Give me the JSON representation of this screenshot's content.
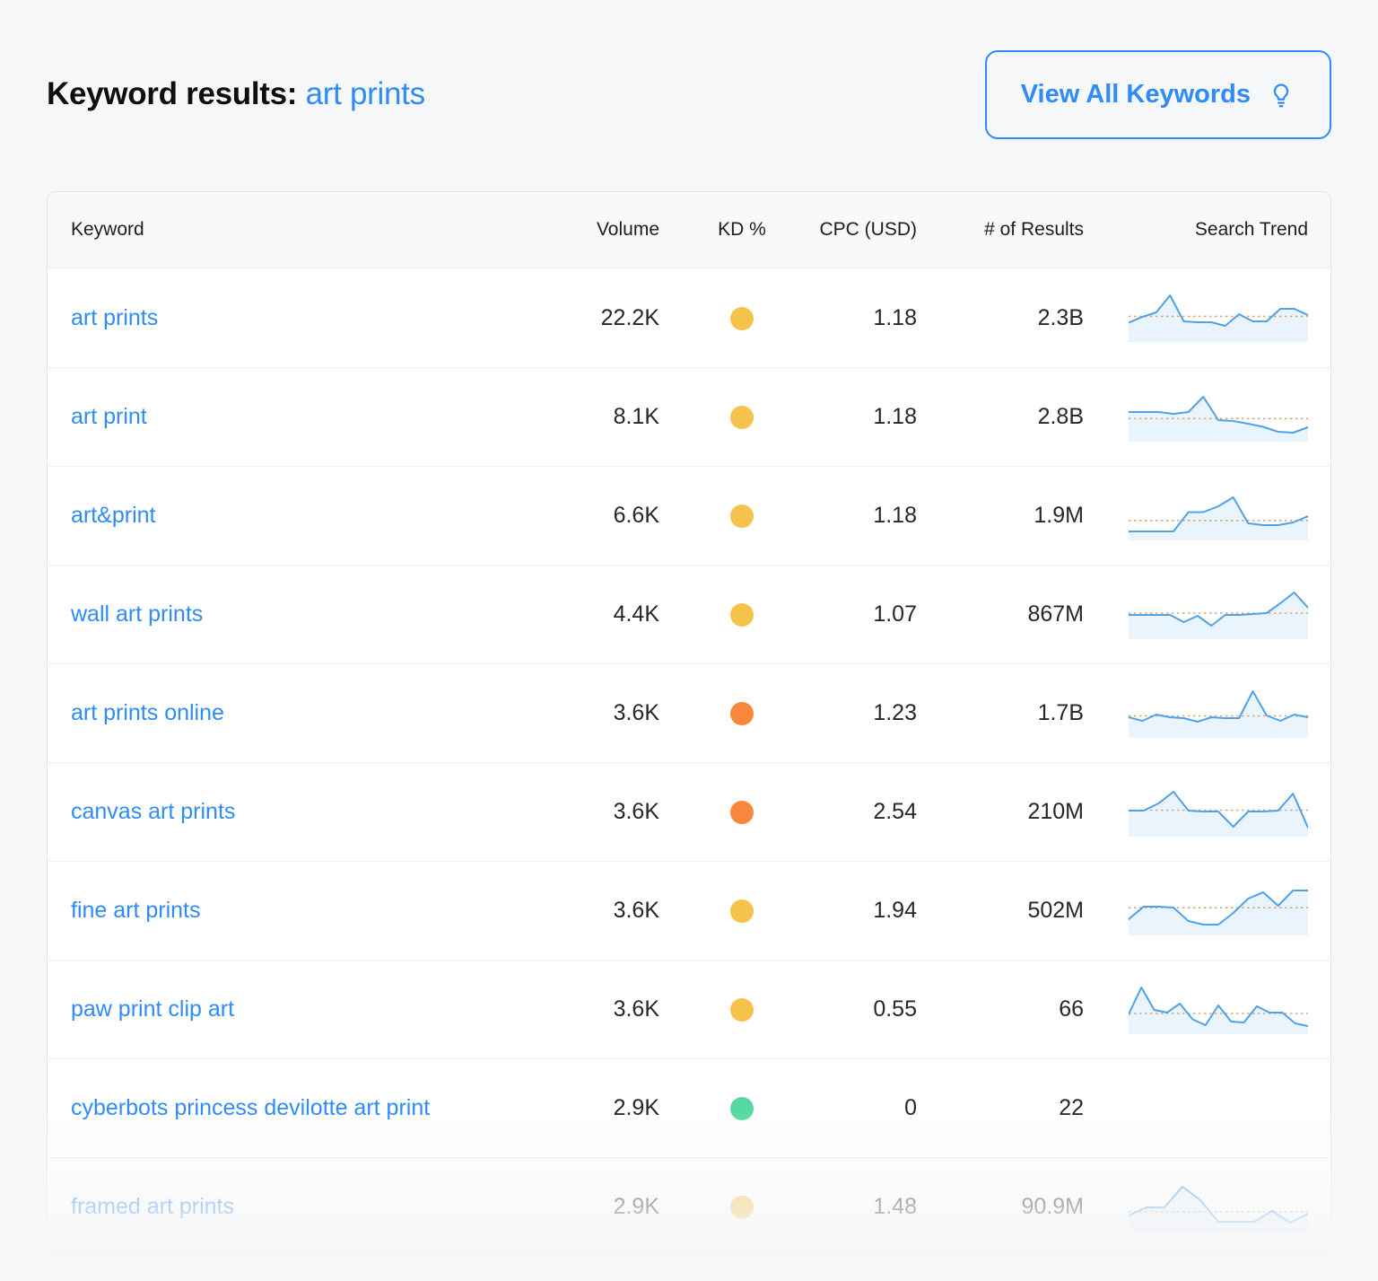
{
  "header": {
    "title_prefix": "Keyword results:",
    "title_query": "art prints",
    "view_all_label": "View All Keywords"
  },
  "table": {
    "columns": [
      "Keyword",
      "Volume",
      "KD %",
      "CPC (USD)",
      "# of Results",
      "Search Trend"
    ],
    "rows": [
      {
        "keyword": "art prints",
        "volume": "22.2K",
        "kd_color": "#F5C24B",
        "cpc": "1.18",
        "results": "2.3B",
        "trend": [
          35,
          48,
          58,
          96,
          38,
          36,
          36,
          28,
          54,
          38,
          38,
          66,
          66,
          52
        ]
      },
      {
        "keyword": "art print",
        "volume": "8.1K",
        "kd_color": "#F5C24B",
        "cpc": "1.18",
        "results": "2.8B",
        "trend": [
          58,
          58,
          58,
          54,
          58,
          92,
          40,
          38,
          32,
          25,
          14,
          12,
          24
        ]
      },
      {
        "keyword": "art&print",
        "volume": "6.6K",
        "kd_color": "#F5C24B",
        "cpc": "1.18",
        "results": "1.9M",
        "trend": [
          12,
          12,
          12,
          12,
          55,
          55,
          68,
          88,
          30,
          26,
          26,
          32,
          46
        ]
      },
      {
        "keyword": "wall art prints",
        "volume": "4.4K",
        "kd_color": "#F5C24B",
        "cpc": "1.07",
        "results": "867M",
        "trend": [
          46,
          46,
          46,
          46,
          30,
          44,
          22,
          46,
          46,
          48,
          50,
          72,
          96,
          62
        ]
      },
      {
        "keyword": "art prints online",
        "volume": "3.6K",
        "kd_color": "#F8863D",
        "cpc": "1.23",
        "results": "1.7B",
        "trend": [
          38,
          30,
          44,
          38,
          36,
          28,
          38,
          36,
          36,
          96,
          42,
          30,
          44,
          38
        ]
      },
      {
        "keyword": "canvas art prints",
        "volume": "3.6K",
        "kd_color": "#F8863D",
        "cpc": "2.54",
        "results": "210M",
        "trend": [
          50,
          50,
          66,
          92,
          50,
          48,
          48,
          14,
          48,
          48,
          50,
          88,
          12
        ]
      },
      {
        "keyword": "fine art prints",
        "volume": "3.6K",
        "kd_color": "#F5C24B",
        "cpc": "1.94",
        "results": "502M",
        "trend": [
          28,
          56,
          56,
          54,
          24,
          16,
          16,
          42,
          74,
          88,
          58,
          92,
          92
        ]
      },
      {
        "keyword": "paw print clip art",
        "volume": "3.6K",
        "kd_color": "#F5C24B",
        "cpc": "0.55",
        "results": "66",
        "trend": [
          36,
          96,
          46,
          40,
          60,
          25,
          12,
          56,
          20,
          18,
          54,
          40,
          40,
          16,
          10
        ]
      },
      {
        "keyword": "cyberbots princess devilotte art print",
        "volume": "2.9K",
        "kd_color": "#57D8A1",
        "cpc": "0",
        "results": "22",
        "trend": null
      },
      {
        "keyword": "framed art prints",
        "volume": "2.9K",
        "kd_color": "#F5C24B",
        "cpc": "1.48",
        "results": "90.9M",
        "trend": [
          28,
          46,
          46,
          92,
          62,
          14,
          14,
          14,
          38,
          12,
          32
        ]
      }
    ]
  },
  "colors": {
    "link_blue": "#2E8BF7",
    "kd_easy_green": "#57D8A1",
    "kd_medium_yellow": "#F5C24B",
    "kd_hard_orange": "#F8863D",
    "spark_line": "#4EA2E8",
    "spark_fill_opacity": "0.12",
    "spark_avg_line": "#D7A87E",
    "page_background": "#F6F7F8"
  }
}
